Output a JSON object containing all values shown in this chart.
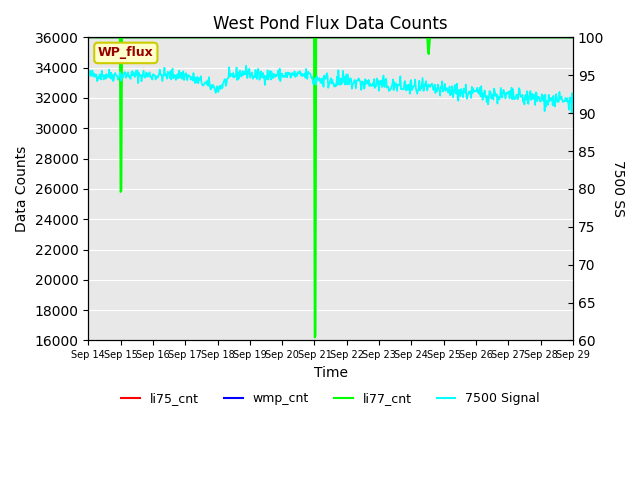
{
  "title": "West Pond Flux Data Counts",
  "ylabel_left": "Data Counts",
  "ylabel_right": "7500 SS",
  "xlabel": "Time",
  "ylim_left": [
    16000,
    36000
  ],
  "ylim_right": [
    60,
    100
  ],
  "yticks_left": [
    16000,
    18000,
    20000,
    22000,
    24000,
    26000,
    28000,
    30000,
    32000,
    34000,
    36000
  ],
  "yticks_right": [
    60,
    65,
    70,
    75,
    80,
    85,
    90,
    95,
    100
  ],
  "x_labels": [
    "Sep 14",
    "Sep 15",
    "Sep 16",
    "Sep 17",
    "Sep 18",
    "Sep 19",
    "Sep 20",
    "Sep 21",
    "Sep 22",
    "Sep 23",
    "Sep 24",
    "Sep 25",
    "Sep 26",
    "Sep 27",
    "Sep 28",
    "Sep 29"
  ],
  "bg_color": "#e8e8e8",
  "legend_entries": [
    "li75_cnt",
    "wmp_cnt",
    "li77_cnt",
    "7500 Signal"
  ],
  "legend_colors": [
    "red",
    "blue",
    "lime",
    "cyan"
  ],
  "annotation_box_text": "WP_flux",
  "annotation_box_facecolor": "#ffffcc",
  "annotation_box_edgecolor": "#cccc00",
  "annotation_box_textcolor": "#990000"
}
